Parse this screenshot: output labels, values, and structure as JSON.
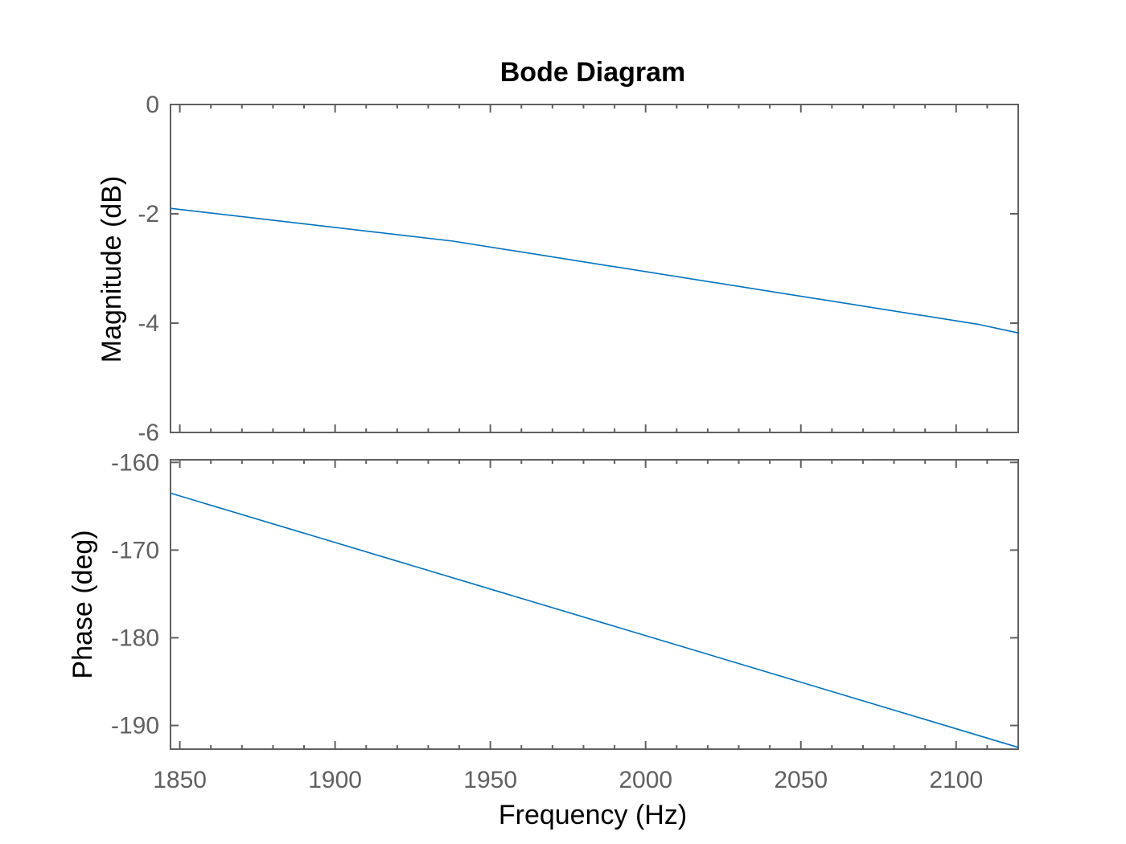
{
  "chart_data": {
    "type": "line",
    "title": "Bode Diagram",
    "xlabel": "Frequency  (Hz)",
    "xlim": [
      1847,
      2120
    ],
    "x_ticks": [
      1850,
      1900,
      1950,
      2000,
      2050,
      2100
    ],
    "x_tick_labels": [
      "1850",
      "1900",
      "1950",
      "2000",
      "2050",
      "2100"
    ],
    "x_minor_step": 10,
    "grid": false,
    "colors": {
      "series": "#0072BD",
      "axes": "#606060",
      "text": "#000000"
    },
    "subplots": [
      {
        "id": "magnitude",
        "ylabel": "Magnitude (dB)",
        "ylim": [
          -6,
          0
        ],
        "y_ticks": [
          0,
          -2,
          -4,
          -6
        ],
        "y_tick_labels": [
          "0",
          "-2",
          "-4",
          "-6"
        ],
        "series": [
          {
            "x": [
              1847,
              1938,
              2107,
              2120
            ],
            "y": [
              -1.9,
              -2.5,
              -4.02,
              -4.18
            ]
          }
        ]
      },
      {
        "id": "phase",
        "ylabel": "Phase (deg)",
        "ylim": [
          -192.7,
          -159.7
        ],
        "y_ticks": [
          -160,
          -170,
          -180,
          -190
        ],
        "y_tick_labels": [
          "-160",
          "-170",
          "-180",
          "-190"
        ],
        "series": [
          {
            "x": [
              1847,
              2120
            ],
            "y": [
              -163.5,
              -192.5
            ]
          }
        ]
      }
    ]
  }
}
